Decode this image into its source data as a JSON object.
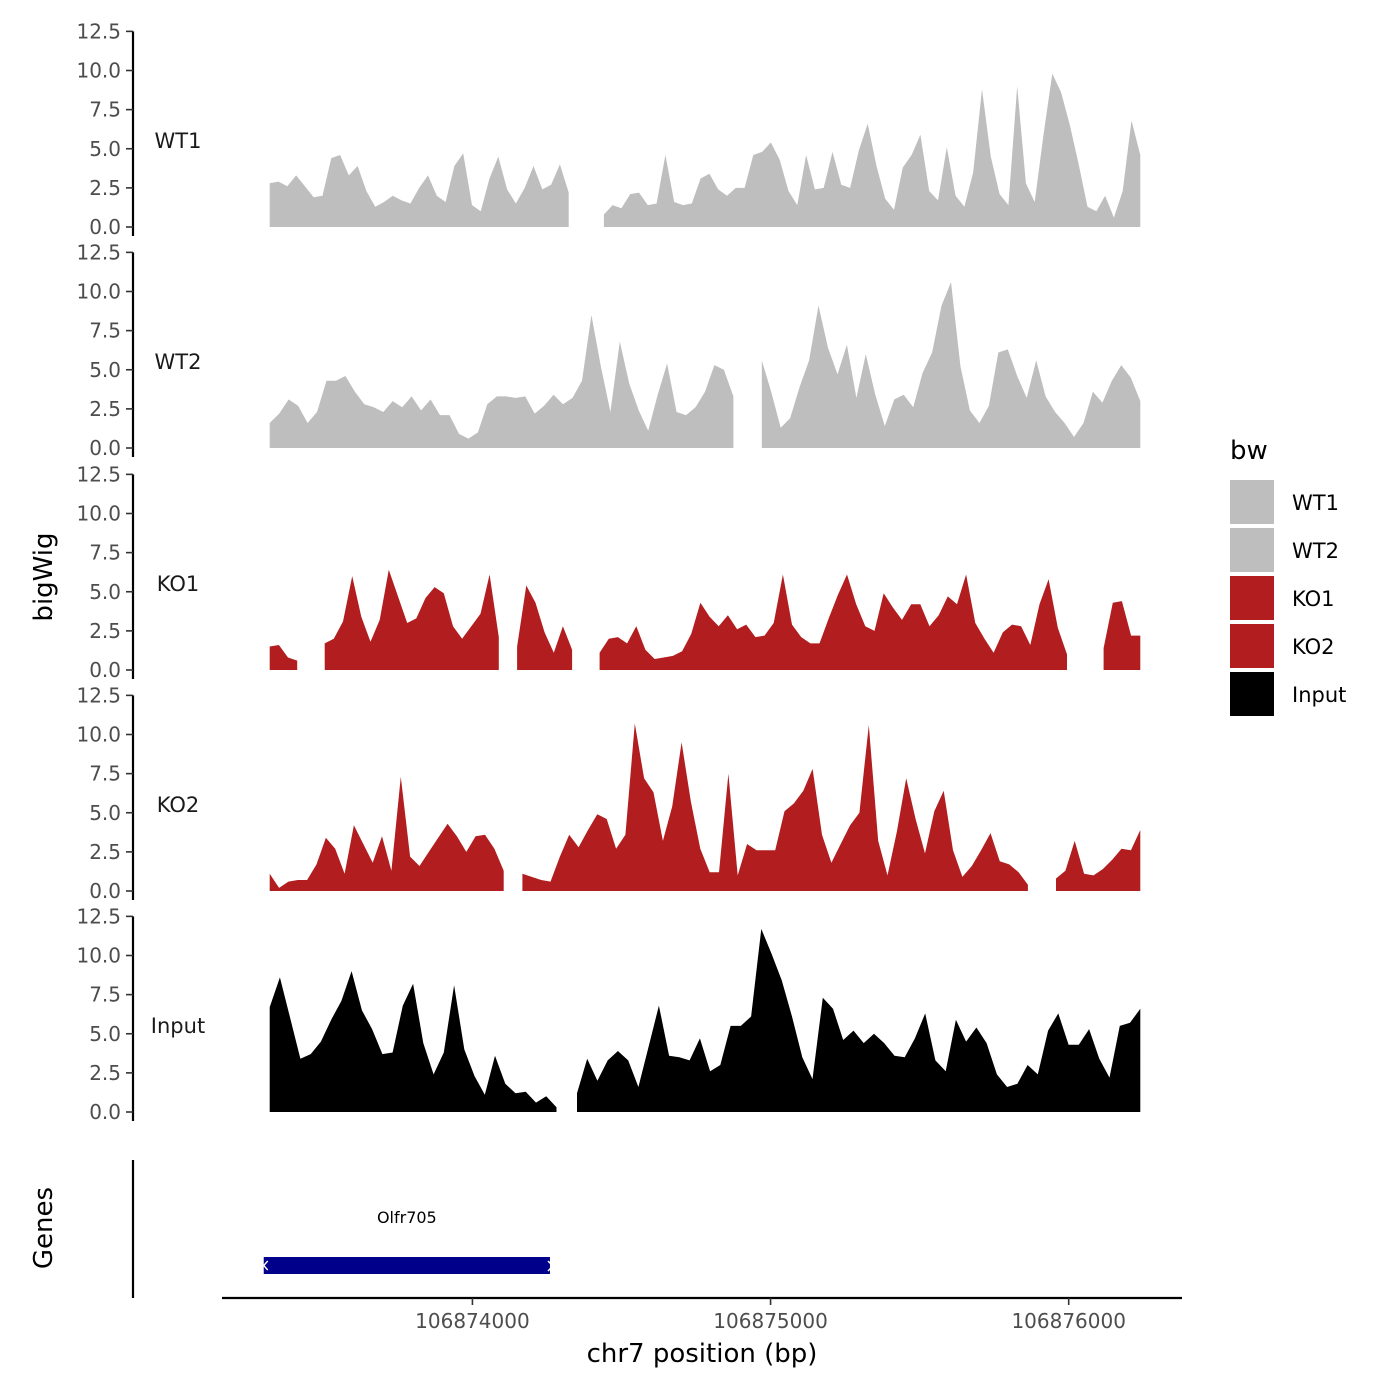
{
  "chart_data": {
    "type": "area",
    "ylabel": "bigWig",
    "xlabel": "chr7 position (bp)",
    "gene_track_label": "Genes",
    "ylim": [
      0,
      12.5
    ],
    "y_ticks": [
      "0.0",
      "2.5",
      "5.0",
      "7.5",
      "10.0",
      "12.5"
    ],
    "xlim": [
      106873160,
      106876380
    ],
    "x_ticks": [
      {
        "value": 106874000,
        "label": "106874000"
      },
      {
        "value": 106875000,
        "label": "106875000"
      },
      {
        "value": 106876000,
        "label": "106876000"
      }
    ],
    "region": [
      106873320,
      106876240
    ],
    "legend": {
      "title": "bw",
      "position": "right"
    },
    "series": [
      {
        "name": "WT1",
        "color": "#bebebe",
        "values": [
          2.8,
          2.9,
          2.6,
          3.3,
          2.6,
          1.9,
          2.0,
          4.4,
          4.6,
          3.3,
          3.9,
          2.3,
          1.3,
          1.6,
          2.0,
          1.7,
          1.5,
          2.5,
          3.3,
          2.0,
          1.6,
          3.9,
          4.7,
          1.4,
          1.0,
          3.1,
          4.5,
          2.4,
          1.5,
          2.5,
          3.9,
          2.4,
          2.7,
          4.0,
          2.2,
          null,
          null,
          null,
          0.8,
          1.4,
          1.2,
          2.1,
          2.2,
          1.4,
          1.5,
          4.6,
          1.6,
          1.4,
          1.5,
          3.1,
          3.4,
          2.4,
          2.0,
          2.5,
          2.5,
          4.6,
          4.8,
          5.4,
          4.3,
          2.3,
          1.4,
          4.6,
          2.4,
          2.5,
          4.8,
          2.7,
          2.5,
          4.9,
          6.6,
          3.9,
          1.8,
          1.1,
          3.8,
          4.6,
          5.9,
          2.3,
          1.7,
          5.1,
          2.0,
          1.3,
          3.5,
          8.8,
          4.5,
          2.1,
          1.4,
          9.0,
          2.8,
          1.6,
          5.9,
          9.8,
          8.6,
          6.5,
          4.0,
          1.3,
          1.0,
          2.0,
          0.6,
          2.3,
          6.8,
          4.6
        ]
      },
      {
        "name": "WT2",
        "color": "#bebebe",
        "values": [
          1.6,
          2.2,
          3.1,
          2.7,
          1.6,
          2.3,
          4.3,
          4.3,
          4.6,
          3.6,
          2.8,
          2.6,
          2.3,
          3.0,
          2.6,
          3.3,
          2.4,
          3.1,
          2.1,
          2.1,
          0.9,
          0.6,
          1.0,
          2.8,
          3.3,
          3.3,
          3.2,
          3.3,
          2.2,
          2.7,
          3.4,
          2.8,
          3.2,
          4.3,
          8.5,
          5.2,
          2.3,
          6.8,
          4.1,
          2.4,
          1.1,
          3.4,
          5.4,
          2.3,
          2.1,
          2.6,
          3.6,
          5.3,
          5.0,
          3.3,
          null,
          null,
          5.6,
          3.6,
          1.3,
          1.9,
          3.9,
          5.6,
          9.1,
          6.4,
          4.7,
          6.6,
          3.2,
          6.0,
          3.4,
          1.4,
          3.1,
          3.4,
          2.6,
          4.8,
          6.1,
          9.1,
          10.6,
          5.2,
          2.4,
          1.6,
          2.7,
          6.1,
          6.3,
          4.6,
          3.2,
          5.6,
          3.3,
          2.3,
          1.6,
          0.7,
          1.6,
          3.6,
          2.9,
          4.3,
          5.3,
          4.5,
          3.0
        ]
      },
      {
        "name": "KO1",
        "color": "#b21e1f",
        "values": [
          1.5,
          1.6,
          0.8,
          0.6,
          null,
          null,
          1.7,
          2.0,
          3.1,
          6.0,
          3.4,
          1.8,
          3.2,
          6.4,
          4.7,
          3.0,
          3.3,
          4.6,
          5.3,
          4.9,
          2.8,
          2.0,
          2.8,
          3.6,
          6.1,
          2.1,
          null,
          1.5,
          5.4,
          4.3,
          2.4,
          1.1,
          2.8,
          1.3,
          null,
          null,
          1.1,
          2.0,
          2.1,
          1.7,
          2.8,
          1.3,
          0.7,
          0.8,
          0.9,
          1.2,
          2.3,
          4.3,
          3.4,
          2.8,
          3.5,
          2.6,
          2.9,
          2.1,
          2.2,
          3.0,
          6.1,
          2.9,
          2.1,
          1.7,
          1.7,
          3.3,
          4.8,
          6.1,
          4.2,
          2.8,
          2.5,
          4.9,
          4.0,
          3.2,
          4.2,
          4.2,
          2.8,
          3.5,
          4.7,
          4.2,
          6.1,
          3.0,
          2.0,
          1.1,
          2.4,
          2.9,
          2.8,
          1.6,
          4.2,
          5.8,
          2.7,
          1.0,
          null,
          null,
          null,
          1.4,
          4.3,
          4.4,
          2.2,
          2.2
        ]
      },
      {
        "name": "KO2",
        "color": "#b21e1f",
        "values": [
          1.1,
          0.2,
          0.6,
          0.7,
          0.7,
          1.7,
          3.4,
          2.7,
          1.1,
          4.2,
          3.0,
          1.8,
          3.5,
          1.3,
          7.3,
          2.2,
          1.6,
          2.5,
          3.4,
          4.3,
          3.5,
          2.5,
          3.5,
          3.6,
          2.7,
          1.3,
          null,
          1.1,
          0.9,
          0.7,
          0.6,
          2.2,
          3.6,
          2.8,
          3.9,
          4.9,
          4.6,
          2.7,
          3.6,
          10.7,
          7.2,
          6.3,
          3.2,
          5.4,
          9.5,
          5.7,
          2.7,
          1.2,
          1.2,
          7.5,
          1.0,
          3.0,
          2.6,
          2.6,
          2.6,
          5.1,
          5.6,
          6.4,
          7.8,
          3.6,
          1.8,
          3.0,
          4.2,
          5.0,
          10.6,
          3.2,
          1.0,
          3.8,
          7.2,
          4.6,
          2.4,
          5.1,
          6.4,
          2.6,
          0.9,
          1.6,
          2.6,
          3.7,
          1.9,
          1.7,
          1.2,
          0.4,
          null,
          null,
          0.8,
          1.3,
          3.2,
          1.1,
          1.0,
          1.4,
          2.0,
          2.7,
          2.6,
          3.9
        ]
      },
      {
        "name": "Input",
        "color": "#000000",
        "values": [
          6.7,
          8.6,
          6.0,
          3.4,
          3.7,
          4.5,
          5.9,
          7.1,
          9.0,
          6.5,
          5.3,
          3.7,
          3.8,
          6.8,
          8.2,
          4.4,
          2.4,
          3.8,
          8.1,
          4.0,
          2.3,
          1.1,
          3.6,
          1.8,
          1.2,
          1.3,
          0.6,
          1.0,
          0.3,
          null,
          1.2,
          3.4,
          2.0,
          3.3,
          3.9,
          3.3,
          1.6,
          4.2,
          6.8,
          3.6,
          3.5,
          3.3,
          4.7,
          2.6,
          3.0,
          5.5,
          5.5,
          6.1,
          11.7,
          10.1,
          8.4,
          6.1,
          3.5,
          2.1,
          7.3,
          6.6,
          4.6,
          5.2,
          4.4,
          5.0,
          4.4,
          3.6,
          3.5,
          4.7,
          6.3,
          3.3,
          2.6,
          5.9,
          4.5,
          5.4,
          4.4,
          2.4,
          1.6,
          1.8,
          3.0,
          2.4,
          5.2,
          6.3,
          4.3,
          4.3,
          5.3,
          3.4,
          2.2,
          5.5,
          5.7,
          6.6
        ]
      }
    ],
    "gene": {
      "name": "Olfr705",
      "start": 106873300,
      "end": 106874260,
      "color": "#00008b"
    }
  }
}
